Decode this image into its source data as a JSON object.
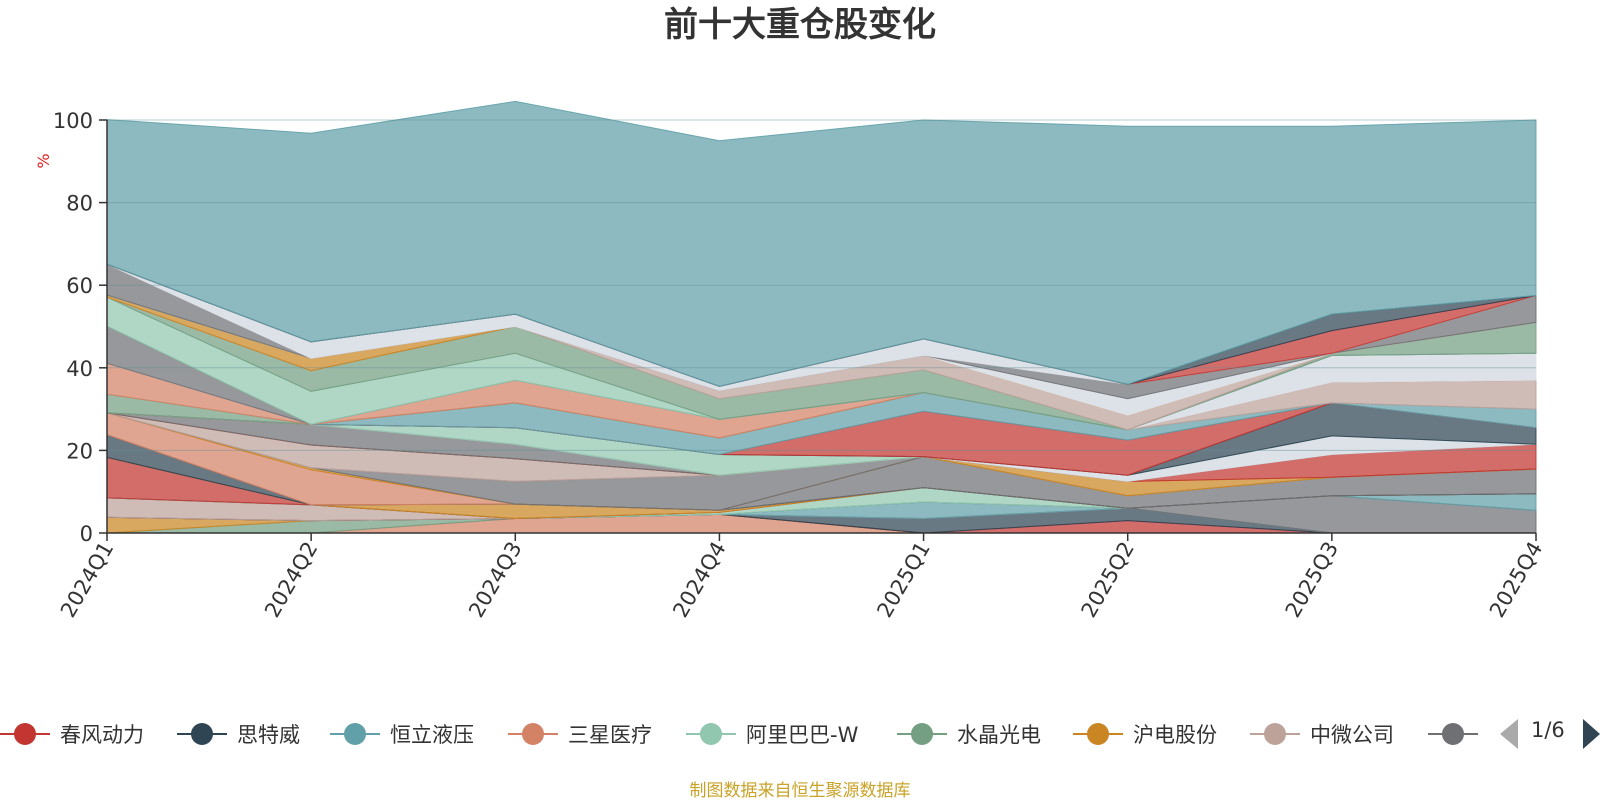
{
  "chart_data": {
    "type": "area",
    "title": "前十大重仓股变化",
    "ylabel": "%",
    "ylim": [
      0,
      100
    ],
    "yticks": [
      "0",
      "20",
      "40",
      "60",
      "80",
      "100"
    ],
    "grid": true,
    "categories": [
      "2024Q1",
      "2024Q2",
      "2024Q3",
      "2024Q4",
      "2025Q1",
      "2025Q2",
      "2025Q3",
      "2025Q4"
    ],
    "legend_visible": [
      {
        "name": "春风动力",
        "color": "#c23531"
      },
      {
        "name": "思特威",
        "color": "#2f4554"
      },
      {
        "name": "恒立液压",
        "color": "#61a0a8"
      },
      {
        "name": "三星医疗",
        "color": "#d48265"
      },
      {
        "name": "阿里巴巴-W",
        "color": "#91c7ae"
      },
      {
        "name": "水晶光电",
        "color": "#749f83"
      },
      {
        "name": "沪电股份",
        "color": "#ca8622"
      },
      {
        "name": "中微公司",
        "color": "#bda29a"
      },
      {
        "name": "",
        "color": "#6e7074"
      }
    ],
    "pager": "1/6",
    "layers": [
      {
        "color": "#91c7ae",
        "values": [
          0,
          0,
          0,
          0,
          0,
          0,
          0,
          0
        ]
      },
      {
        "color": "#61a0a8",
        "values": [
          0,
          0,
          0,
          0,
          0,
          0,
          0,
          0
        ]
      },
      {
        "color": "#d48265",
        "values": [
          0,
          0,
          3.5,
          4.5,
          0,
          0,
          0,
          0
        ]
      },
      {
        "color": "#749f83",
        "values": [
          0,
          3,
          0,
          0,
          0,
          0,
          0,
          0
        ]
      },
      {
        "color": "#ca8622",
        "values": [
          3.8,
          0,
          0,
          0,
          0,
          0,
          0,
          0
        ]
      },
      {
        "color": "#c23531",
        "values": [
          0,
          0,
          0,
          0,
          0,
          3,
          0,
          0
        ]
      },
      {
        "color": "#2f4554",
        "values": [
          0,
          0,
          0,
          0,
          3.5,
          3,
          0,
          0
        ]
      },
      {
        "color": "#bda29a",
        "values": [
          4.7,
          3.8,
          0,
          0,
          0,
          0,
          0,
          0
        ]
      },
      {
        "color": "#61a0a8",
        "values": [
          0,
          0,
          0,
          0,
          4,
          0,
          0,
          0
        ]
      },
      {
        "color": "#6e7074",
        "values": [
          0,
          0,
          0,
          0,
          0,
          0,
          9,
          5.5
        ]
      },
      {
        "color": "#61a0a8",
        "values": [
          0,
          0,
          0,
          0,
          0,
          0,
          0,
          4
        ]
      },
      {
        "color": "#91c7ae",
        "values": [
          0,
          0,
          0,
          0.5,
          3.5,
          0,
          0,
          0
        ]
      },
      {
        "color": "#c23531",
        "values": [
          9.8,
          0,
          0,
          0,
          0,
          0,
          0,
          0
        ]
      },
      {
        "color": "#ca8622",
        "values": [
          0,
          0,
          3.5,
          0.5,
          0,
          0,
          0,
          0
        ]
      },
      {
        "color": "#2f4554",
        "values": [
          5.5,
          0,
          0,
          0,
          0,
          0,
          0,
          0
        ]
      },
      {
        "color": "#6e7074",
        "values": [
          0,
          0,
          0,
          0,
          7.5,
          3,
          4.5,
          6
        ]
      },
      {
        "color": "#d48265",
        "values": [
          5.3,
          8.5,
          0,
          0,
          0,
          0,
          0,
          0
        ]
      },
      {
        "color": "#ca8622",
        "values": [
          0,
          0.5,
          0,
          0,
          0,
          0,
          0,
          0
        ]
      },
      {
        "color": "#6e7074",
        "values": [
          0,
          0,
          5.5,
          8.5,
          0,
          0,
          0,
          0
        ]
      },
      {
        "color": "#bda29a",
        "values": [
          0,
          5.5,
          5.5,
          0,
          0,
          0,
          0,
          0
        ]
      },
      {
        "color": "#ca8622",
        "values": [
          0,
          0,
          0,
          0,
          0,
          3.5,
          0,
          0
        ]
      },
      {
        "color": "#c23531",
        "values": [
          0,
          0,
          0,
          0,
          0,
          0,
          5.5,
          6
        ]
      },
      {
        "color": "#6e7074",
        "values": [
          0,
          5,
          3.5,
          0,
          0,
          0,
          0,
          0
        ]
      },
      {
        "color": "#dde1e8",
        "values": [
          0,
          0,
          0,
          0,
          0,
          1.5,
          4.5,
          0
        ]
      },
      {
        "color": "#91c7ae",
        "values": [
          0,
          0,
          4,
          5,
          0,
          0,
          0,
          0
        ]
      },
      {
        "color": "#2f4554",
        "values": [
          0,
          0,
          0,
          0,
          0,
          0,
          8,
          4
        ]
      },
      {
        "color": "#c23531",
        "values": [
          0,
          0,
          0,
          0,
          11,
          8.5,
          0,
          0
        ]
      },
      {
        "color": "#61a0a8",
        "values": [
          0,
          0,
          6,
          4,
          4.5,
          2.5,
          0,
          4.5
        ]
      },
      {
        "color": "#bda29a",
        "values": [
          0,
          0,
          0,
          0,
          0,
          0,
          5,
          7
        ]
      },
      {
        "color": "#749f83",
        "values": [
          4.5,
          0,
          0,
          0,
          0,
          0,
          0,
          0
        ]
      },
      {
        "color": "#d48265",
        "values": [
          7.5,
          0,
          5.5,
          4.5,
          0,
          0,
          0,
          0
        ]
      },
      {
        "color": "#dde1e8",
        "values": [
          0,
          0,
          0,
          0,
          0,
          0,
          6.5,
          6.5
        ]
      },
      {
        "color": "#6e7074",
        "values": [
          9,
          0,
          0,
          0,
          0,
          0,
          0,
          0
        ]
      },
      {
        "color": "#91c7ae",
        "values": [
          7,
          8,
          6.5,
          0,
          0,
          0,
          0,
          0
        ]
      },
      {
        "color": "#749f83",
        "values": [
          0,
          5,
          6.5,
          5,
          5.5,
          0,
          0.5,
          7.5
        ]
      },
      {
        "color": "#bda29a",
        "values": [
          0,
          0,
          0,
          2,
          3.5,
          3.5,
          0,
          0
        ]
      },
      {
        "color": "#ca8622",
        "values": [
          0.5,
          3,
          0,
          0,
          0,
          0,
          0,
          0
        ]
      },
      {
        "color": "#dde1e8",
        "values": [
          0,
          0,
          0,
          0,
          0,
          4,
          0,
          0
        ]
      },
      {
        "color": "#6e7074",
        "values": [
          7.5,
          0,
          0,
          0,
          0,
          3.5,
          0,
          6.5
        ]
      },
      {
        "color": "#dde1e8",
        "values": [
          0,
          4,
          3,
          1,
          4,
          0,
          0,
          0
        ]
      },
      {
        "color": "#c23531",
        "values": [
          0,
          0,
          0,
          0,
          0,
          0,
          5.5,
          0
        ]
      },
      {
        "color": "#2f4554",
        "values": [
          0,
          0,
          0,
          0,
          0,
          0,
          4,
          0
        ]
      },
      {
        "color": "#61a0a8",
        "values": [
          35,
          50.5,
          51.5,
          59.5,
          53,
          62.5,
          45.5,
          42.5
        ]
      }
    ]
  },
  "source_note": "制图数据来自恒生聚源数据库"
}
